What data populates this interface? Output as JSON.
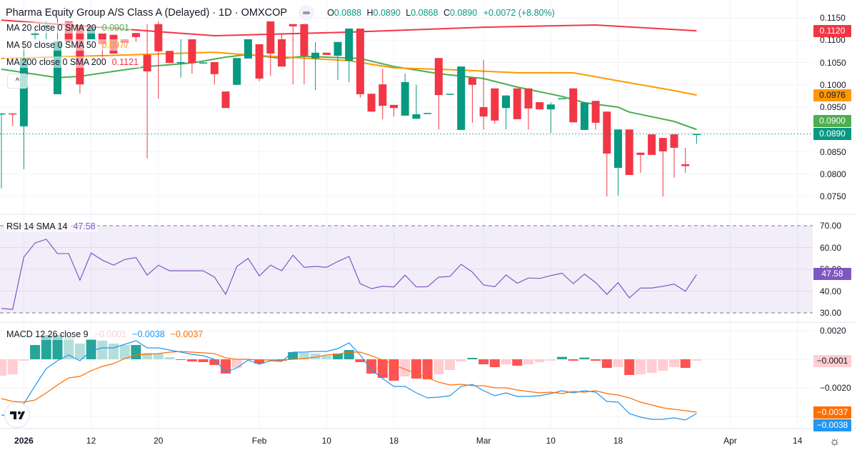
{
  "header": {
    "title": "Pharma Equity Group A/S Class A (Delayed) · 1D · OMXCOP",
    "ohlc": {
      "o_label": "O",
      "o": "0.0888",
      "h_label": "H",
      "h": "0.0890",
      "l_label": "L",
      "l": "0.0868",
      "c_label": "C",
      "c": "0.0890",
      "change": "+0.0072 (+8.80%)"
    }
  },
  "legends": {
    "ma20": {
      "label": "MA 20 close 0 SMA 20",
      "value": "0.0901",
      "color": "#4caf50"
    },
    "ma50": {
      "label": "MA 50 close 0 SMA 50",
      "value": "0.0977",
      "color": "#ff9800"
    },
    "ma200": {
      "label": "MA 200 close 0 SMA 200",
      "value": "0.1121",
      "color": "#f23645"
    },
    "rsi": {
      "label": "RSI 14 SMA 14",
      "value": "47.58",
      "color": "#7e57c2"
    },
    "macd": {
      "label": "MACD 12 26 close 9",
      "hist": "−0.0001",
      "macd": "−0.0038",
      "signal": "−0.0037"
    }
  },
  "collapse_icon": "chevron-up-icon",
  "price_axis": [
    "0.1150",
    "0.1100",
    "0.1050",
    "0.1000",
    "0.0950",
    "0.0850",
    "0.0800",
    "0.0750"
  ],
  "rsi_axis": [
    "70.00",
    "60.00",
    "50.00",
    "40.00",
    "30.00"
  ],
  "macd_axis": [
    "0.0020",
    "−0.0020"
  ],
  "badges": {
    "ma200": {
      "text": "0.1120",
      "color": "#f23645"
    },
    "ma50": {
      "text": "0.0976",
      "color": "#ff9800"
    },
    "ma20": {
      "text": "0.0900",
      "color": "#4caf50"
    },
    "last": {
      "text": "0.0890",
      "color": "#089981"
    },
    "rsi": {
      "text": "47.58",
      "color": "#7e57c2"
    },
    "hist": {
      "text": "−0.0001",
      "color": "#ffcdd2"
    },
    "signal": {
      "text": "−0.0037",
      "color": "#ff6d00"
    },
    "macd": {
      "text": "−0.0038",
      "color": "#2196f3"
    }
  },
  "time_axis": [
    {
      "label": "2026",
      "date": "2026-01-02",
      "bold": true
    },
    {
      "label": "12",
      "date": "2026-01-12"
    },
    {
      "label": "20",
      "date": "2026-01-20"
    },
    {
      "label": "Feb",
      "date": "2026-02-02"
    },
    {
      "label": "10",
      "date": "2026-02-10"
    },
    {
      "label": "18",
      "date": "2026-02-18"
    },
    {
      "label": "Mar",
      "date": "2026-03-02"
    },
    {
      "label": "10",
      "date": "2026-03-10"
    },
    {
      "label": "18",
      "date": "2026-03-18"
    },
    {
      "label": "Apr",
      "date": "2026-04-01"
    },
    {
      "label": "14",
      "date": "2026-04-14"
    }
  ],
  "settings_icon": "gear-icon",
  "logo": "TradingView",
  "colors": {
    "up": "#089981",
    "down": "#f23645",
    "rsi": "#7e57c2",
    "macd": "#2196f3",
    "signal": "#ff6d00",
    "hist_up_strong": "#26a69a",
    "hist_up_weak": "#b2dfdb",
    "hist_down_strong": "#ff5252",
    "hist_down_weak": "#ffcdd2"
  },
  "chart_data": {
    "type": "candlestick",
    "price_range": [
      0.0725,
      0.1165
    ],
    "candle_fields": [
      "date",
      "open",
      "high",
      "low",
      "close"
    ],
    "candles": [
      [
        "2025-12-29",
        0.0934,
        0.0936,
        0.0768,
        0.0936
      ],
      [
        "2025-12-30",
        0.0936,
        0.0936,
        0.0908,
        0.0934
      ],
      [
        "2026-01-02",
        0.0907,
        0.1094,
        0.0811,
        0.1059
      ],
      [
        "2026-01-05",
        0.1112,
        0.1123,
        0.1102,
        0.1115
      ],
      [
        "2026-01-06",
        0.1129,
        0.1142,
        0.1102,
        0.1134
      ],
      [
        "2026-01-07",
        0.0979,
        0.115,
        0.0979,
        0.1097
      ],
      [
        "2026-01-08",
        0.1142,
        0.1142,
        0.1094,
        0.1097
      ],
      [
        "2026-01-09",
        0.1134,
        0.1134,
        0.098,
        0.1001
      ],
      [
        "2026-01-12",
        0.1102,
        0.1134,
        0.1102,
        0.1129
      ],
      [
        "2026-01-13",
        0.1115,
        0.1115,
        0.1054,
        0.1091
      ],
      [
        "2026-01-14",
        0.1112,
        0.1112,
        0.107,
        0.107
      ],
      [
        "2026-01-15",
        0.1102,
        0.1102,
        0.1083,
        0.1094
      ],
      [
        "2026-01-16",
        0.1116,
        0.1116,
        0.1096,
        0.1107
      ],
      [
        "2026-01-19",
        0.1067,
        0.1136,
        0.0835,
        0.103
      ],
      [
        "2026-01-20",
        0.1136,
        0.1142,
        0.0969,
        0.1075
      ],
      [
        "2026-01-21",
        0.1076,
        0.1076,
        0.1049,
        0.1049
      ],
      [
        "2026-01-22",
        0.1049,
        0.1102,
        0.1016,
        0.1051
      ],
      [
        "2026-01-23",
        0.1102,
        0.1102,
        0.1025,
        0.1049
      ],
      [
        "2026-01-26",
        0.1049,
        0.1051,
        0.1049,
        0.105
      ],
      [
        "2026-01-27",
        0.1051,
        0.1051,
        0.1001,
        0.1024
      ],
      [
        "2026-01-28",
        0.0985,
        0.0985,
        0.0948,
        0.0948
      ],
      [
        "2026-01-29",
        0.1,
        0.106,
        0.1,
        0.106
      ],
      [
        "2026-01-30",
        0.1059,
        0.1102,
        0.1059,
        0.1102
      ],
      [
        "2026-02-02",
        0.1091,
        0.1091,
        0.1008,
        0.1014
      ],
      [
        "2026-02-03",
        0.1142,
        0.1142,
        0.102,
        0.107
      ],
      [
        "2026-02-04",
        0.1102,
        0.1116,
        0.1041,
        0.1041
      ],
      [
        "2026-02-05",
        0.1136,
        0.1136,
        0.1001,
        0.1131
      ],
      [
        "2026-02-06",
        0.1136,
        0.1136,
        0.1001,
        0.1065
      ],
      [
        "2026-02-09",
        0.1059,
        0.1096,
        0.0988,
        0.1072
      ],
      [
        "2026-02-10",
        0.1072,
        0.1072,
        0.1067,
        0.1067
      ],
      [
        "2026-02-11",
        0.1065,
        0.1096,
        0.1011,
        0.1096
      ],
      [
        "2026-02-12",
        0.1054,
        0.1126,
        0.1006,
        0.1126
      ],
      [
        "2026-02-13",
        0.1126,
        0.1126,
        0.0971,
        0.0979
      ],
      [
        "2026-02-16",
        0.098,
        0.098,
        0.094,
        0.094
      ],
      [
        "2026-02-17",
        0.1001,
        0.1036,
        0.0923,
        0.0953
      ],
      [
        "2026-02-18",
        0.0955,
        0.0955,
        0.0929,
        0.0948
      ],
      [
        "2026-02-19",
        0.0931,
        0.1025,
        0.0931,
        0.1006
      ],
      [
        "2026-02-20",
        0.0924,
        0.1,
        0.0924,
        0.0934
      ],
      [
        "2026-02-23",
        0.0936,
        0.0937,
        0.0936,
        0.0937
      ],
      [
        "2026-02-24",
        0.106,
        0.106,
        0.09,
        0.0977
      ],
      [
        "2026-02-25",
        0.0979,
        0.098,
        0.0979,
        0.098
      ],
      [
        "2026-02-26",
        0.0899,
        0.1041,
        0.0899,
        0.1041
      ],
      [
        "2026-02-27",
        0.1016,
        0.1016,
        0.0915,
        0.1
      ],
      [
        "2026-03-02",
        0.095,
        0.1056,
        0.09,
        0.0929
      ],
      [
        "2026-03-03",
        0.0992,
        0.0992,
        0.0913,
        0.092
      ],
      [
        "2026-03-04",
        0.0948,
        0.0977,
        0.09,
        0.0976
      ],
      [
        "2026-03-05",
        0.0992,
        0.0992,
        0.0923,
        0.0923
      ],
      [
        "2026-03-06",
        0.0992,
        0.0992,
        0.09,
        0.0947
      ],
      [
        "2026-03-09",
        0.0961,
        0.0961,
        0.0945,
        0.0945
      ],
      [
        "2026-03-10",
        0.0945,
        0.0961,
        0.0892,
        0.0956
      ],
      [
        "2026-03-11",
        0.0969,
        0.097,
        0.0969,
        0.097
      ],
      [
        "2026-03-12",
        0.0992,
        0.0992,
        0.0916,
        0.0916
      ],
      [
        "2026-03-13",
        0.0899,
        0.0961,
        0.0899,
        0.096
      ],
      [
        "2026-03-16",
        0.0964,
        0.0964,
        0.09,
        0.0915
      ],
      [
        "2026-03-17",
        0.094,
        0.094,
        0.075,
        0.0846
      ],
      [
        "2026-03-18",
        0.0814,
        0.09,
        0.0752,
        0.09
      ],
      [
        "2026-03-19",
        0.09,
        0.09,
        0.0798,
        0.0798
      ],
      [
        "2026-03-20",
        0.0848,
        0.0848,
        0.0803,
        0.0843
      ],
      [
        "2026-03-23",
        0.0889,
        0.0889,
        0.0843,
        0.0843
      ],
      [
        "2026-03-24",
        0.0881,
        0.0881,
        0.075,
        0.0851
      ],
      [
        "2026-03-25",
        0.0889,
        0.0889,
        0.0792,
        0.0859
      ],
      [
        "2026-03-26",
        0.0822,
        0.0859,
        0.0803,
        0.0818
      ],
      [
        "2026-03-27",
        0.0888,
        0.089,
        0.0868,
        0.089
      ]
    ],
    "last_price": 0.089,
    "moving_averages": [
      {
        "name": "MA 20",
        "color": "#4caf50",
        "points": [
          [
            "2025-12-29",
            0.1035
          ],
          [
            "2026-01-07",
            0.1016
          ],
          [
            "2026-01-09",
            0.1019
          ],
          [
            "2026-01-19",
            0.1041
          ],
          [
            "2026-01-23",
            0.1049
          ],
          [
            "2026-01-28",
            0.1062
          ],
          [
            "2026-01-30",
            0.1068
          ],
          [
            "2026-02-04",
            0.1059
          ],
          [
            "2026-02-06",
            0.1064
          ],
          [
            "2026-02-13",
            0.1059
          ],
          [
            "2026-02-18",
            0.1041
          ],
          [
            "2026-02-24",
            0.1025
          ],
          [
            "2026-03-02",
            0.1014
          ],
          [
            "2026-03-05",
            0.0995
          ],
          [
            "2026-03-11",
            0.0974
          ],
          [
            "2026-03-13",
            0.096
          ],
          [
            "2026-03-18",
            0.095
          ],
          [
            "2026-03-19",
            0.0939
          ],
          [
            "2026-03-25",
            0.0918
          ],
          [
            "2026-03-27",
            0.09
          ]
        ]
      },
      {
        "name": "MA 50",
        "color": "#ff9800",
        "points": [
          [
            "2025-12-29",
            0.1059
          ],
          [
            "2026-01-14",
            0.1066
          ],
          [
            "2026-01-27",
            0.1073
          ],
          [
            "2026-01-30",
            0.1067
          ],
          [
            "2026-02-12",
            0.1054
          ],
          [
            "2026-02-18",
            0.1038
          ],
          [
            "2026-02-26",
            0.1033
          ],
          [
            "2026-03-05",
            0.1027
          ],
          [
            "2026-03-12",
            0.1027
          ],
          [
            "2026-03-18",
            0.1009
          ],
          [
            "2026-03-25",
            0.0987
          ],
          [
            "2026-03-27",
            0.0977
          ]
        ]
      },
      {
        "name": "MA 200",
        "color": "#f23645",
        "points": [
          [
            "2025-12-29",
            0.1145
          ],
          [
            "2026-01-19",
            0.1121
          ],
          [
            "2026-01-27",
            0.111
          ],
          [
            "2026-02-12",
            0.1118
          ],
          [
            "2026-03-02",
            0.1129
          ],
          [
            "2026-03-16",
            0.1134
          ],
          [
            "2026-03-27",
            0.1121
          ]
        ]
      }
    ],
    "rsi": {
      "range": [
        30,
        70
      ],
      "upper": 70,
      "lower": 30,
      "values": [
        32.0,
        31.6,
        55.6,
        62.1,
        63.8,
        57.2,
        57.2,
        45.0,
        57.5,
        54.2,
        51.9,
        54.5,
        55.4,
        47.3,
        51.9,
        49.3,
        49.3,
        49.3,
        49.3,
        46.4,
        38.5,
        51.3,
        55.0,
        47.0,
        51.9,
        49.3,
        56.5,
        50.9,
        51.3,
        50.9,
        53.6,
        55.9,
        43.4,
        41.1,
        42.2,
        41.9,
        47.3,
        41.9,
        42.0,
        46.4,
        46.7,
        52.3,
        48.7,
        42.8,
        42.0,
        47.4,
        43.6,
        46.0,
        45.8,
        47.1,
        48.2,
        43.4,
        47.8,
        43.9,
        38.5,
        43.9,
        36.9,
        41.4,
        41.4,
        42.2,
        43.2,
        39.9,
        47.58
      ]
    },
    "macd": {
      "histogram": [
        -0.00115,
        -0.00105,
        -0.0001,
        0.001,
        0.0017,
        0.0017,
        0.0016,
        0.0011,
        0.0014,
        0.0013,
        0.0011,
        0.001,
        0.001,
        0.00045,
        0.0004,
        0.00015,
        -5e-05,
        -0.00015,
        -0.0002,
        -0.0004,
        -0.001,
        -0.0006,
        -5e-05,
        -0.0003,
        -5e-05,
        -0.0001,
        0.0005,
        0.00045,
        0.0004,
        0.00025,
        0.0004,
        0.00065,
        -0.0002,
        -0.001,
        -0.0013,
        -0.0015,
        -0.0012,
        -0.00135,
        -0.0014,
        -0.00105,
        -0.00075,
        -0.00015,
        0.0001,
        -0.00035,
        -0.00055,
        -0.00035,
        -0.00045,
        -0.00035,
        -0.0002,
        -0.0001,
        0.00017,
        -0.0001,
        0.00012,
        -0.0001,
        -0.0006,
        -0.00055,
        -0.0011,
        -0.00105,
        -0.00095,
        -0.0008,
        -0.00055,
        -0.0006,
        -0.0001
      ],
      "macd": [
        -0.0039,
        -0.004,
        -0.0031,
        -0.00185,
        -0.00065,
        -0.0001,
        0.0003,
        -0.0001,
        0.0006,
        0.0008,
        0.0008,
        0.00105,
        0.0013,
        0.0008,
        0.0008,
        0.00065,
        0.0005,
        0.00035,
        0.00025,
        0,
        -0.0009,
        -0.0006,
        -5e-05,
        -0.00035,
        -0.0001,
        -0.00015,
        0.0005,
        0.0005,
        0.00055,
        0.00055,
        0.00075,
        0.00115,
        0.0003,
        -0.00075,
        -0.00135,
        -0.0019,
        -0.0019,
        -0.00235,
        -0.0027,
        -0.00265,
        -0.00255,
        -0.0019,
        -0.00175,
        -0.0022,
        -0.00255,
        -0.00235,
        -0.0026,
        -0.0026,
        -0.00255,
        -0.0024,
        -0.0022,
        -0.00235,
        -0.0022,
        -0.0023,
        -0.00295,
        -0.003,
        -0.0038,
        -0.00405,
        -0.0042,
        -0.0042,
        -0.0041,
        -0.00425,
        -0.0038
      ],
      "signal": [
        -0.00275,
        -0.00295,
        -0.003,
        -0.00285,
        -0.00235,
        -0.0018,
        -0.0013,
        -0.0012,
        -0.0008,
        -0.0005,
        -0.0003,
        5e-05,
        0.0003,
        0.00035,
        0.0004,
        0.0005,
        0.00055,
        0.0005,
        0.00045,
        0.0004,
        0.0001,
        0,
        0,
        -5e-05,
        -5e-05,
        -5e-05,
        0,
        5e-05,
        0.00015,
        0.0003,
        0.00035,
        0.0005,
        0.0005,
        0.00025,
        -5e-05,
        -0.0004,
        -0.0007,
        -0.001,
        -0.0013,
        -0.0016,
        -0.0018,
        -0.00175,
        -0.00185,
        -0.00185,
        -0.002,
        -0.002,
        -0.00215,
        -0.00225,
        -0.00235,
        -0.0023,
        -0.0024,
        -0.00225,
        -0.0023,
        -0.0022,
        -0.0024,
        -0.0025,
        -0.0027,
        -0.003,
        -0.0032,
        -0.0034,
        -0.0035,
        -0.0036,
        -0.0037
      ]
    }
  }
}
